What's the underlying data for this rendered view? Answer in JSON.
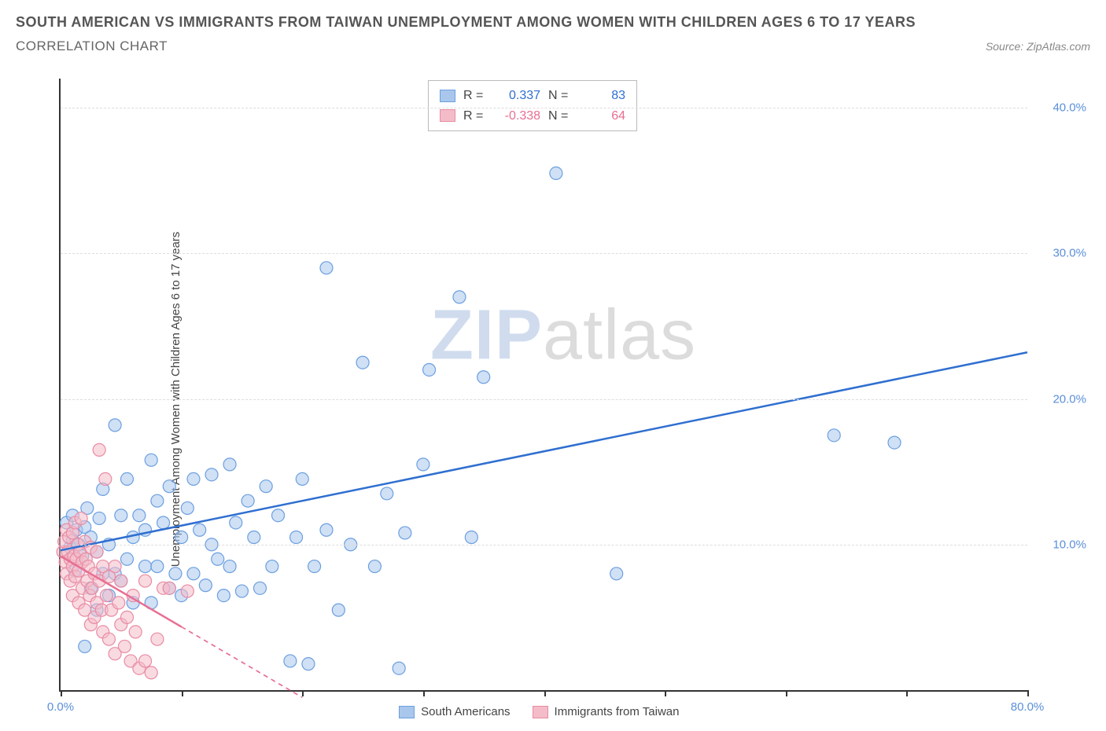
{
  "header": {
    "title": "SOUTH AMERICAN VS IMMIGRANTS FROM TAIWAN UNEMPLOYMENT AMONG WOMEN WITH CHILDREN AGES 6 TO 17 YEARS",
    "subtitle": "CORRELATION CHART",
    "source": "Source: ZipAtlas.com"
  },
  "chart": {
    "type": "scatter",
    "ylabel": "Unemployment Among Women with Children Ages 6 to 17 years",
    "xlim": [
      0,
      80
    ],
    "ylim": [
      0,
      42
    ],
    "xticks": [
      0,
      10,
      20,
      30,
      40,
      50,
      60,
      70,
      80
    ],
    "xtick_labels": {
      "0": "0.0%",
      "80": "80.0%"
    },
    "yticks": [
      10,
      20,
      30,
      40
    ],
    "ytick_labels": [
      "10.0%",
      "20.0%",
      "30.0%",
      "40.0%"
    ],
    "grid_color": "#dddddd",
    "axis_color": "#333333",
    "tick_label_color": "#5b8fd9",
    "background_color": "#ffffff",
    "marker_radius": 8,
    "marker_opacity": 0.55,
    "line_width": 2.5,
    "series": [
      {
        "name": "South Americans",
        "color_fill": "#a9c7ec",
        "color_stroke": "#6b9fe0",
        "line_color": "#2f6fd0",
        "R": "0.337",
        "N": "83",
        "trend": {
          "x1": 0,
          "y1": 9.6,
          "x2": 80,
          "y2": 23.2,
          "dash": false
        },
        "points": [
          [
            0.5,
            11.5
          ],
          [
            0.8,
            9.8
          ],
          [
            1.0,
            10.3
          ],
          [
            1.0,
            12.0
          ],
          [
            1.2,
            8.2
          ],
          [
            1.3,
            11.0
          ],
          [
            1.5,
            10.0
          ],
          [
            1.8,
            9.2
          ],
          [
            2.0,
            11.2
          ],
          [
            2.0,
            3.0
          ],
          [
            2.2,
            12.5
          ],
          [
            2.5,
            7.0
          ],
          [
            2.5,
            10.5
          ],
          [
            3.0,
            9.5
          ],
          [
            3.0,
            5.5
          ],
          [
            3.2,
            11.8
          ],
          [
            3.5,
            8.0
          ],
          [
            3.5,
            13.8
          ],
          [
            4.0,
            10.0
          ],
          [
            4.0,
            6.5
          ],
          [
            4.5,
            8.0
          ],
          [
            4.5,
            18.2
          ],
          [
            5.0,
            12.0
          ],
          [
            5.0,
            7.5
          ],
          [
            5.5,
            14.5
          ],
          [
            5.5,
            9.0
          ],
          [
            6.0,
            10.5
          ],
          [
            6.0,
            6.0
          ],
          [
            6.5,
            12.0
          ],
          [
            7.0,
            8.5
          ],
          [
            7.0,
            11.0
          ],
          [
            7.5,
            15.8
          ],
          [
            7.5,
            6.0
          ],
          [
            8.0,
            13.0
          ],
          [
            8.0,
            8.5
          ],
          [
            8.5,
            11.5
          ],
          [
            9.0,
            7.0
          ],
          [
            9.0,
            14.0
          ],
          [
            9.5,
            8.0
          ],
          [
            10.0,
            10.5
          ],
          [
            10.0,
            6.5
          ],
          [
            10.5,
            12.5
          ],
          [
            11.0,
            14.5
          ],
          [
            11.0,
            8.0
          ],
          [
            11.5,
            11.0
          ],
          [
            12.0,
            7.2
          ],
          [
            12.5,
            14.8
          ],
          [
            12.5,
            10.0
          ],
          [
            13.0,
            9.0
          ],
          [
            13.5,
            6.5
          ],
          [
            14.0,
            15.5
          ],
          [
            14.0,
            8.5
          ],
          [
            14.5,
            11.5
          ],
          [
            15.0,
            6.8
          ],
          [
            15.5,
            13.0
          ],
          [
            16.0,
            10.5
          ],
          [
            16.5,
            7.0
          ],
          [
            17.0,
            14.0
          ],
          [
            17.5,
            8.5
          ],
          [
            18.0,
            12.0
          ],
          [
            19.0,
            2.0
          ],
          [
            19.5,
            10.5
          ],
          [
            20.0,
            14.5
          ],
          [
            20.5,
            1.8
          ],
          [
            21.0,
            8.5
          ],
          [
            22.0,
            29.0
          ],
          [
            22.0,
            11.0
          ],
          [
            23.0,
            5.5
          ],
          [
            24.0,
            10.0
          ],
          [
            25.0,
            22.5
          ],
          [
            26.0,
            8.5
          ],
          [
            27.0,
            13.5
          ],
          [
            28.0,
            1.5
          ],
          [
            28.5,
            10.8
          ],
          [
            30.0,
            15.5
          ],
          [
            30.5,
            22.0
          ],
          [
            33.0,
            27.0
          ],
          [
            34.0,
            10.5
          ],
          [
            35.0,
            21.5
          ],
          [
            41.0,
            35.5
          ],
          [
            46.0,
            8.0
          ],
          [
            64.0,
            17.5
          ],
          [
            69.0,
            17.0
          ]
        ]
      },
      {
        "name": "Immigrants from Taiwan",
        "color_fill": "#f4bcc9",
        "color_stroke": "#e88ba3",
        "line_color": "#e86f92",
        "R": "-0.338",
        "N": "64",
        "trend": {
          "x1": 0,
          "y1": 9.2,
          "x2": 20,
          "y2": -0.5,
          "dash": true,
          "dash_from_x": 10
        },
        "points": [
          [
            0.2,
            9.5
          ],
          [
            0.3,
            10.2
          ],
          [
            0.4,
            8.8
          ],
          [
            0.5,
            11.0
          ],
          [
            0.5,
            8.0
          ],
          [
            0.6,
            9.5
          ],
          [
            0.7,
            10.5
          ],
          [
            0.8,
            7.5
          ],
          [
            0.8,
            9.0
          ],
          [
            1.0,
            8.5
          ],
          [
            1.0,
            10.8
          ],
          [
            1.0,
            6.5
          ],
          [
            1.1,
            9.2
          ],
          [
            1.2,
            11.5
          ],
          [
            1.2,
            7.8
          ],
          [
            1.3,
            9.0
          ],
          [
            1.4,
            10.0
          ],
          [
            1.5,
            8.2
          ],
          [
            1.5,
            6.0
          ],
          [
            1.6,
            9.5
          ],
          [
            1.7,
            11.8
          ],
          [
            1.8,
            7.0
          ],
          [
            1.8,
            8.8
          ],
          [
            2.0,
            10.2
          ],
          [
            2.0,
            5.5
          ],
          [
            2.1,
            9.0
          ],
          [
            2.2,
            7.5
          ],
          [
            2.3,
            8.5
          ],
          [
            2.4,
            6.5
          ],
          [
            2.5,
            9.8
          ],
          [
            2.5,
            4.5
          ],
          [
            2.6,
            7.0
          ],
          [
            2.8,
            8.0
          ],
          [
            2.8,
            5.0
          ],
          [
            3.0,
            9.5
          ],
          [
            3.0,
            6.0
          ],
          [
            3.2,
            16.5
          ],
          [
            3.2,
            7.5
          ],
          [
            3.4,
            5.5
          ],
          [
            3.5,
            8.5
          ],
          [
            3.5,
            4.0
          ],
          [
            3.7,
            14.5
          ],
          [
            3.8,
            6.5
          ],
          [
            4.0,
            7.8
          ],
          [
            4.0,
            3.5
          ],
          [
            4.2,
            5.5
          ],
          [
            4.5,
            8.5
          ],
          [
            4.5,
            2.5
          ],
          [
            4.8,
            6.0
          ],
          [
            5.0,
            4.5
          ],
          [
            5.0,
            7.5
          ],
          [
            5.3,
            3.0
          ],
          [
            5.5,
            5.0
          ],
          [
            5.8,
            2.0
          ],
          [
            6.0,
            6.5
          ],
          [
            6.2,
            4.0
          ],
          [
            6.5,
            1.5
          ],
          [
            7.0,
            2.0
          ],
          [
            7.0,
            7.5
          ],
          [
            7.5,
            1.2
          ],
          [
            8.0,
            3.5
          ],
          [
            8.5,
            7.0
          ],
          [
            9.0,
            7.0
          ],
          [
            10.5,
            6.8
          ]
        ]
      }
    ],
    "legend": {
      "items": [
        "South Americans",
        "Immigrants from Taiwan"
      ]
    },
    "watermark": {
      "part1": "ZIP",
      "part2": "atlas"
    }
  }
}
